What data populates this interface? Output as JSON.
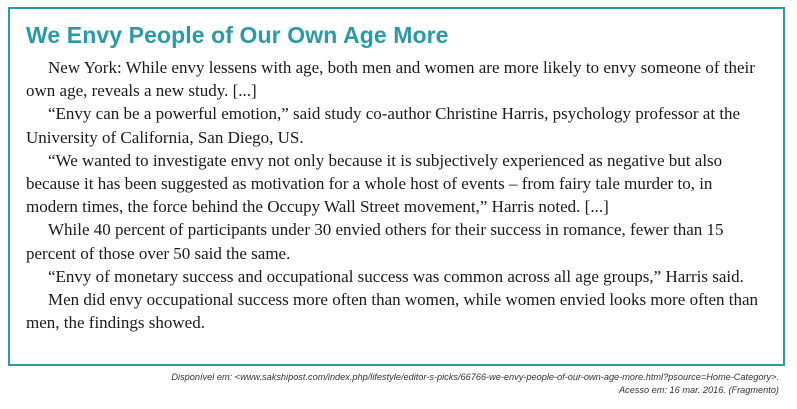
{
  "article": {
    "title": "We Envy People of Our Own Age More",
    "paragraphs": [
      "New York: While envy lessens with age, both men and women are more likely to envy someone of their own age, reveals a new study. [...]",
      "“Envy can be a powerful emotion,” said study co-author Christine Harris, psychology professor at the University of California, San Diego, US.",
      "“We wanted to investigate envy not only because it is subjectively experienced as negative but also because it has been suggested as motivation for a whole host of events – from fairy tale murder to, in modern times, the force behind the Occupy Wall Street movement,” Harris noted. [...]",
      "While 40 percent of participants under 30 envied others for their success in romance, fewer than 15 percent of those over 50 said the same.",
      "“Envy of monetary success and occupational success was common across all age groups,” Harris said.",
      "Men did envy occupational success more often than women, while women envied looks more often than men, the findings showed."
    ]
  },
  "source": {
    "available_at": "Disponível em: <www.sakshipost.com/index.php/lifestyle/editor-s-picks/66766-we-envy-people-of-our-own-age-more.html?psource=Home-Category>.",
    "accessed_on": "Acesso em: 16 mar. 2016. (Fragmento)"
  },
  "colors": {
    "accent": "#2a9aa7",
    "text": "#1a1a1a"
  }
}
